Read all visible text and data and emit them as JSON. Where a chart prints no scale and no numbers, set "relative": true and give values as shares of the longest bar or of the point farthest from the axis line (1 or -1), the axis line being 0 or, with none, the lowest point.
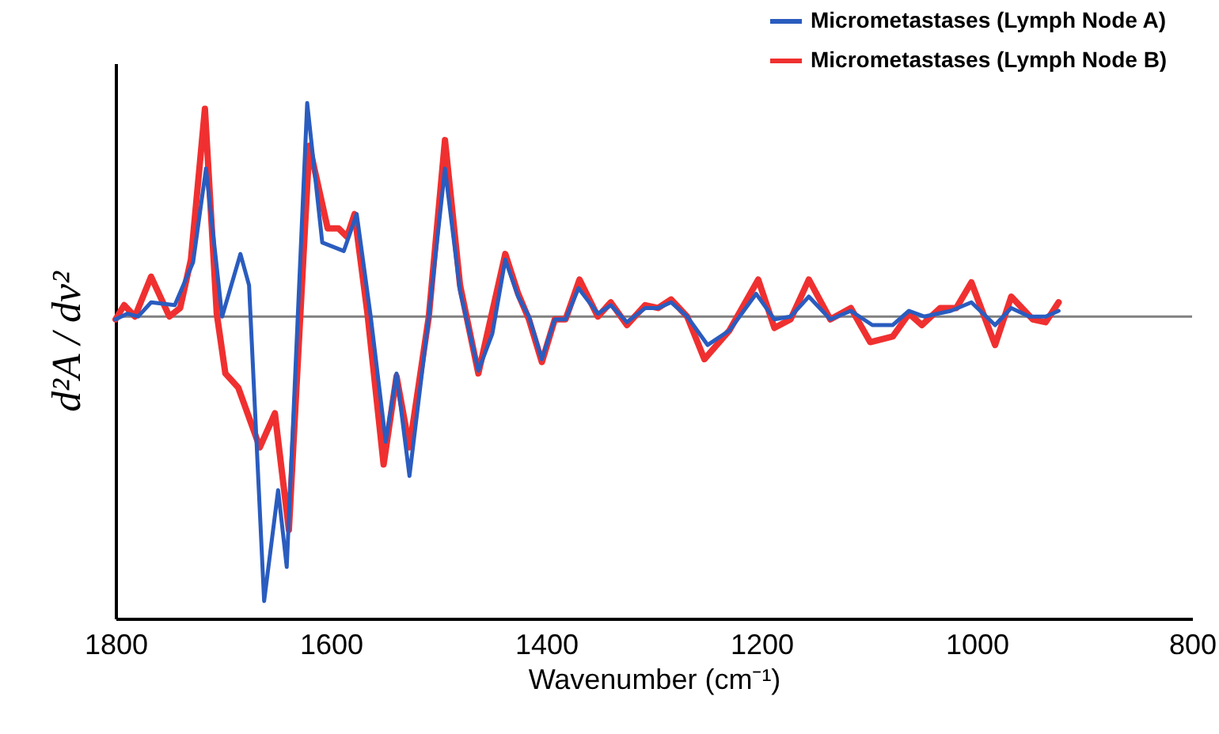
{
  "chart_data": {
    "type": "line",
    "relative": true,
    "xlabel": "Wavenumber (cm⁻¹)",
    "ylabel": "d²A / dν²",
    "xlim": [
      1800,
      800
    ],
    "xticks": [
      1800,
      1600,
      1400,
      1200,
      1000,
      800
    ],
    "grid": false,
    "legend": "top right",
    "line_style": "solid",
    "marker": "none",
    "ref_lines": [
      {
        "axis": "y",
        "value": 0,
        "color": "#808080"
      }
    ],
    "series": [
      {
        "name": "Micrometastases (Lymph Node A)",
        "color": "#2a5cbf",
        "x": [
          1800,
          1789,
          1779,
          1767,
          1745,
          1728,
          1716,
          1701,
          1684,
          1676,
          1662,
          1649,
          1641,
          1622,
          1608,
          1588,
          1576,
          1563,
          1549,
          1539,
          1527,
          1509,
          1494,
          1480,
          1463,
          1450,
          1438,
          1426,
          1416,
          1404,
          1392,
          1382,
          1370,
          1352,
          1340,
          1325,
          1308,
          1296,
          1284,
          1269,
          1250,
          1230,
          1205,
          1188,
          1173,
          1156,
          1136,
          1117,
          1097,
          1078,
          1063,
          1049,
          1024,
          1005,
          983,
          968,
          951,
          936,
          924
        ],
        "values": [
          -0.01,
          0.01,
          0,
          0.05,
          0.04,
          0.19,
          0.52,
          0,
          0.22,
          0.11,
          -1,
          -0.61,
          -0.88,
          0.75,
          0.26,
          0.23,
          0.36,
          0,
          -0.44,
          -0.2,
          -0.56,
          0,
          0.52,
          0.09,
          -0.19,
          -0.06,
          0.2,
          0.07,
          0,
          -0.15,
          -0.01,
          -0.01,
          0.1,
          0.01,
          0.04,
          -0.02,
          0.03,
          0.03,
          0.05,
          0,
          -0.1,
          -0.05,
          0.08,
          -0.01,
          0,
          0.07,
          -0.01,
          0.02,
          -0.03,
          -0.03,
          0.02,
          0,
          0.02,
          0.05,
          -0.03,
          0.03,
          0,
          0,
          0.02
        ]
      },
      {
        "name": "Micrometastases (Lymph Node B)",
        "color": "#f03030",
        "x": [
          1800,
          1792,
          1782,
          1767,
          1750,
          1740,
          1730,
          1717,
          1706,
          1698,
          1686,
          1666,
          1652,
          1639,
          1620,
          1603,
          1593,
          1585,
          1578,
          1566,
          1551,
          1539,
          1527,
          1509,
          1494,
          1480,
          1463,
          1438,
          1426,
          1416,
          1404,
          1392,
          1382,
          1369,
          1352,
          1340,
          1325,
          1308,
          1296,
          1284,
          1269,
          1253,
          1230,
          1203,
          1188,
          1173,
          1156,
          1136,
          1117,
          1099,
          1078,
          1063,
          1051,
          1034,
          1019,
          1005,
          983,
          968,
          948,
          936,
          924
        ],
        "values": [
          -0.01,
          0.04,
          0,
          0.14,
          0,
          0.03,
          0.2,
          0.73,
          0.01,
          -0.2,
          -0.25,
          -0.46,
          -0.34,
          -0.75,
          0.6,
          0.31,
          0.31,
          0.28,
          0.36,
          0.01,
          -0.52,
          -0.21,
          -0.46,
          0,
          0.62,
          0.11,
          -0.2,
          0.22,
          0.08,
          -0.01,
          -0.16,
          -0.01,
          -0.01,
          0.13,
          0,
          0.05,
          -0.03,
          0.04,
          0.03,
          0.06,
          0,
          -0.15,
          -0.05,
          0.13,
          -0.04,
          -0.01,
          0.13,
          -0.01,
          0.03,
          -0.09,
          -0.07,
          0.01,
          -0.03,
          0.03,
          0.03,
          0.12,
          -0.1,
          0.07,
          -0.01,
          -0.02,
          0.05
        ]
      }
    ]
  }
}
